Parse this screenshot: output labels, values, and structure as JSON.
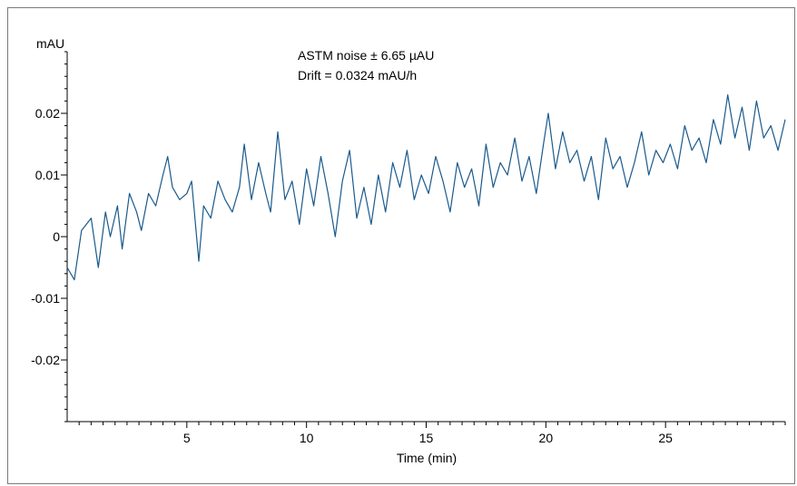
{
  "chart_data": {
    "type": "line",
    "ylabel": "mAU",
    "xlabel": "Time (min)",
    "annotations": [
      "ASTM noise ± 6.65 µAU",
      "Drift = 0.0324 mAU/h"
    ],
    "xlim": [
      0,
      30
    ],
    "ylim": [
      -0.03,
      0.03
    ],
    "x_ticks": [
      5,
      10,
      15,
      20,
      25
    ],
    "x_tick_labels": [
      "5",
      "10",
      "15",
      "20",
      "25"
    ],
    "y_ticks": [
      0.02,
      0.01,
      0,
      -0.01,
      -0.02
    ],
    "y_tick_labels": [
      "0.02",
      "0.01",
      "0",
      "-0.01",
      "-0.02"
    ],
    "grid": false,
    "series": [
      {
        "color": "#1a5a8c",
        "x": [
          0.0,
          0.3,
          0.6,
          1.0,
          1.3,
          1.6,
          1.8,
          2.1,
          2.3,
          2.6,
          2.9,
          3.1,
          3.4,
          3.7,
          4.0,
          4.2,
          4.4,
          4.7,
          5.0,
          5.2,
          5.5,
          5.7,
          6.0,
          6.3,
          6.6,
          6.9,
          7.2,
          7.4,
          7.7,
          8.0,
          8.3,
          8.5,
          8.8,
          9.1,
          9.4,
          9.7,
          10.0,
          10.3,
          10.6,
          10.9,
          11.2,
          11.5,
          11.8,
          12.1,
          12.4,
          12.7,
          13.0,
          13.3,
          13.6,
          13.9,
          14.2,
          14.5,
          14.8,
          15.1,
          15.4,
          15.7,
          16.0,
          16.3,
          16.6,
          16.9,
          17.2,
          17.5,
          17.8,
          18.1,
          18.4,
          18.7,
          19.0,
          19.3,
          19.6,
          19.9,
          20.1,
          20.4,
          20.7,
          21.0,
          21.3,
          21.6,
          21.9,
          22.2,
          22.5,
          22.8,
          23.1,
          23.4,
          23.7,
          24.0,
          24.3,
          24.6,
          24.9,
          25.2,
          25.5,
          25.8,
          26.1,
          26.4,
          26.7,
          27.0,
          27.3,
          27.6,
          27.9,
          28.2,
          28.5,
          28.8,
          29.1,
          29.4,
          29.7,
          30.0
        ],
        "y": [
          -0.005,
          -0.007,
          0.001,
          0.003,
          -0.005,
          0.004,
          0.0,
          0.005,
          -0.002,
          0.007,
          0.004,
          0.001,
          0.007,
          0.005,
          0.01,
          0.013,
          0.008,
          0.006,
          0.007,
          0.009,
          -0.004,
          0.005,
          0.003,
          0.009,
          0.006,
          0.004,
          0.008,
          0.015,
          0.006,
          0.012,
          0.007,
          0.004,
          0.017,
          0.006,
          0.009,
          0.002,
          0.011,
          0.005,
          0.013,
          0.007,
          0.0,
          0.009,
          0.014,
          0.003,
          0.008,
          0.002,
          0.01,
          0.004,
          0.012,
          0.008,
          0.014,
          0.006,
          0.01,
          0.007,
          0.013,
          0.009,
          0.004,
          0.012,
          0.008,
          0.011,
          0.005,
          0.015,
          0.008,
          0.012,
          0.01,
          0.016,
          0.009,
          0.013,
          0.007,
          0.015,
          0.02,
          0.011,
          0.017,
          0.012,
          0.014,
          0.009,
          0.013,
          0.006,
          0.016,
          0.011,
          0.013,
          0.008,
          0.012,
          0.017,
          0.01,
          0.014,
          0.012,
          0.015,
          0.011,
          0.018,
          0.014,
          0.016,
          0.012,
          0.019,
          0.015,
          0.023,
          0.016,
          0.021,
          0.014,
          0.022,
          0.016,
          0.018,
          0.014,
          0.019
        ]
      }
    ]
  }
}
